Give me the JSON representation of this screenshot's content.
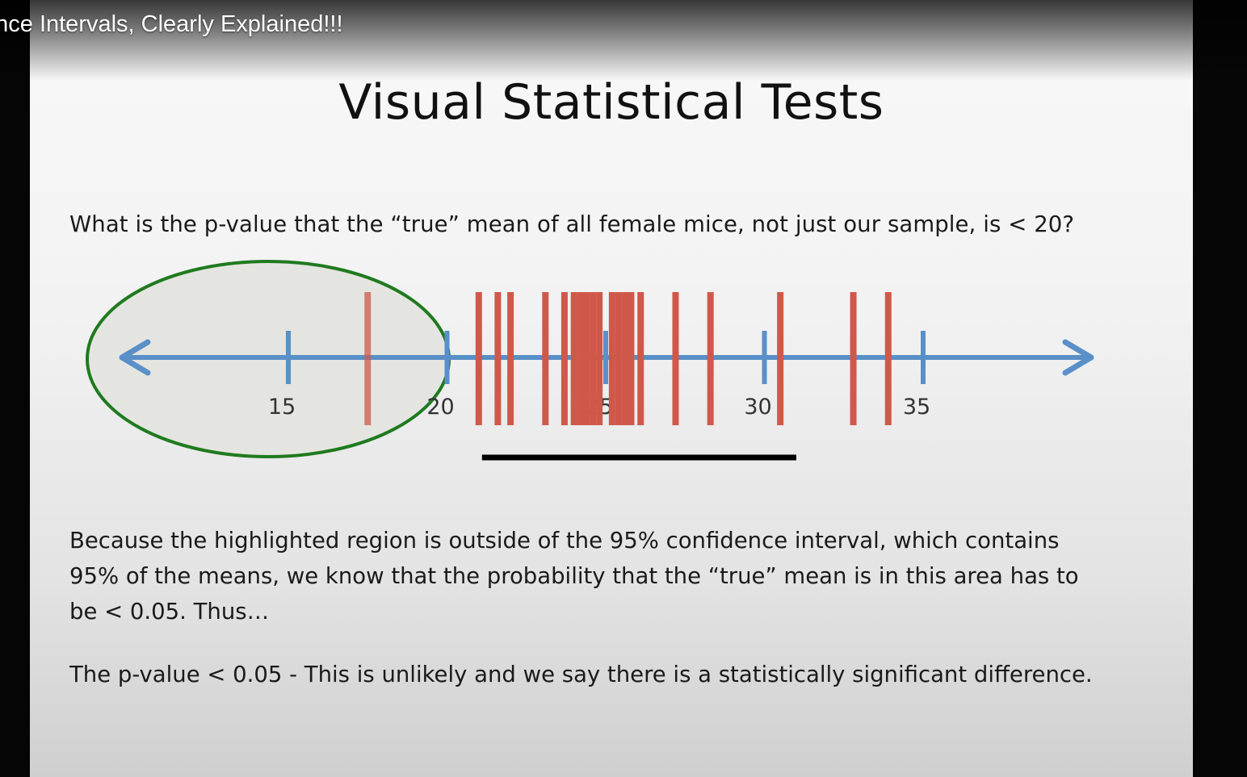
{
  "video": {
    "title": "ence Intervals, Clearly Explained!!!"
  },
  "slide": {
    "title": "Visual Statistical Tests",
    "question": "What is the p-value that the “true” mean of all female mice, not just our sample, is < 20?",
    "explanation_lines": [
      "Because the highlighted region is outside of the 95% confidence interval, which contains",
      "95% of the means, we know that the probability that the “true” mean is in this area has to",
      "be < 0.05.  Thus…"
    ],
    "conclusion": "The p-value < 0.05 - This is unlikely and we say there is a statistically significant difference."
  },
  "number_line": {
    "ticks": [
      {
        "value": 15,
        "label": "15"
      },
      {
        "value": 20,
        "label": "20"
      },
      {
        "value": 25,
        "label": "25"
      },
      {
        "value": 30,
        "label": "30"
      },
      {
        "value": 35,
        "label": "35"
      }
    ],
    "sample_means": [
      17.5,
      21,
      21.6,
      22,
      23.1,
      23.7,
      24,
      24.2,
      24.4,
      24.6,
      24.8,
      25.2,
      25.4,
      25.6,
      25.8,
      26.1,
      27.2,
      28.3,
      30.5,
      32.8,
      33.9
    ],
    "confidence_interval": [
      21,
      30.8
    ],
    "highlighted_region": "< 20",
    "colors": {
      "axis": "#5a8fc8",
      "sample_mean": "#d0584a",
      "highlight_outline": "#1f7a1f",
      "highlight_fill": "#e4e5e0",
      "interval_bar": "#000000"
    }
  }
}
